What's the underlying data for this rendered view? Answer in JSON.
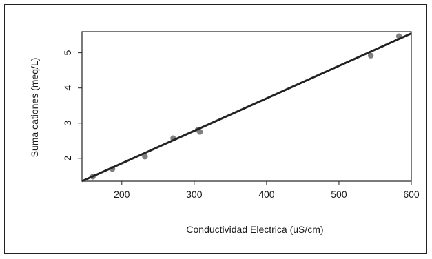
{
  "chart_data": {
    "type": "scatter",
    "title": "",
    "xlabel": "Conductividad Electrica (uS/cm)",
    "ylabel": "Suma cationes (meq/L)",
    "xlim": [
      145,
      600
    ],
    "ylim": [
      1.35,
      5.6
    ],
    "x_ticks": [
      200,
      300,
      400,
      500,
      600
    ],
    "y_ticks": [
      2,
      3,
      4,
      5
    ],
    "grid": false,
    "legend": "none",
    "points": [
      {
        "x": 160,
        "y": 1.48
      },
      {
        "x": 187,
        "y": 1.7
      },
      {
        "x": 232,
        "y": 2.05
      },
      {
        "x": 271,
        "y": 2.57
      },
      {
        "x": 305,
        "y": 2.81
      },
      {
        "x": 308,
        "y": 2.75
      },
      {
        "x": 544,
        "y": 4.92
      },
      {
        "x": 583,
        "y": 5.47
      }
    ],
    "regression_line": {
      "x": [
        145,
        600
      ],
      "y": [
        1.35,
        5.55
      ]
    },
    "colors": {
      "points": "#808080",
      "line": "#222222",
      "axes": "#222222"
    }
  }
}
